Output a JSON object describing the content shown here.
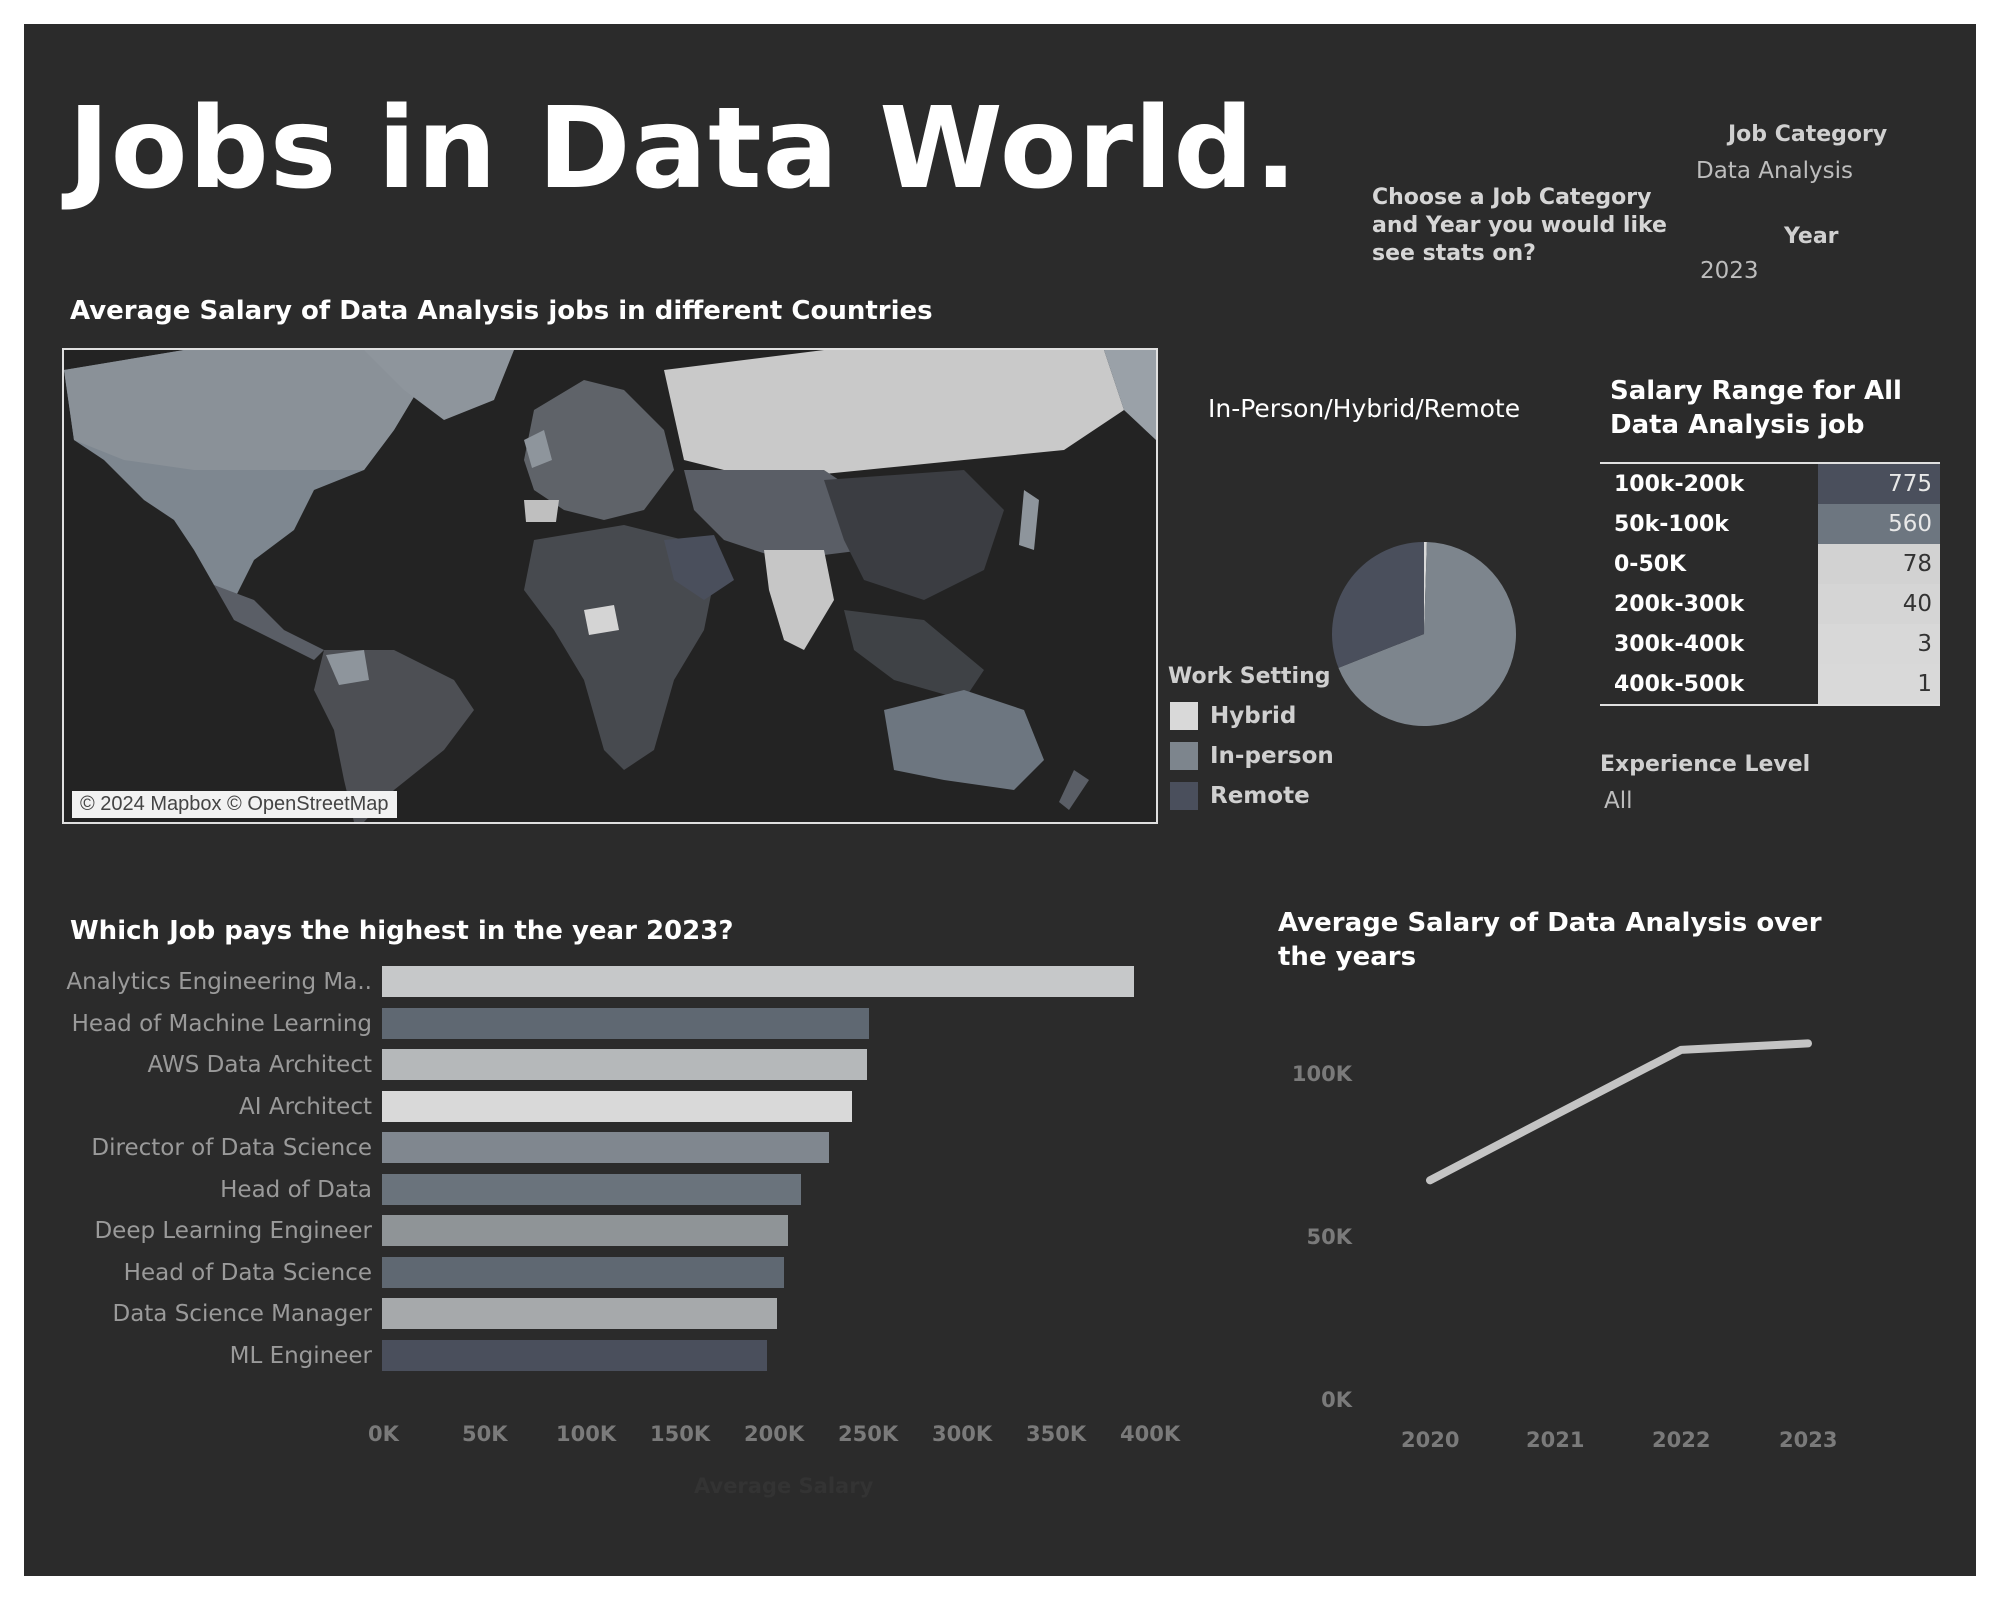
{
  "header": {
    "title": "Jobs in Data World.",
    "prompt": "Choose a Job Category and Year you would like see stats on?"
  },
  "filters": {
    "job_category_label": "Job Category",
    "job_category_value": "Data Analysis",
    "year_label": "Year",
    "year_value": "2023",
    "experience_label": "Experience Level",
    "experience_value": "All"
  },
  "map": {
    "title": "Average Salary of Data Analysis jobs in different Countries",
    "attribution": "© 2024 Mapbox © OpenStreetMap"
  },
  "work_setting": {
    "title": "In-Person/Hybrid/Remote",
    "legend_title": "Work Setting",
    "items": [
      {
        "label": "Hybrid",
        "color": "#d9d9d9"
      },
      {
        "label": "In-person",
        "color": "#7d858d"
      },
      {
        "label": "Remote",
        "color": "#4a4f5c"
      }
    ]
  },
  "salary_range": {
    "title_line1": "Salary Range for All",
    "title_line2": "Data Analysis job",
    "rows": [
      {
        "label": "100k-200k",
        "value": "775",
        "bg": "#4a4f5c",
        "fg": "#e8e8e8"
      },
      {
        "label": "50k-100k",
        "value": "560",
        "bg": "#6d7680",
        "fg": "#e8e8e8"
      },
      {
        "label": "0-50K",
        "value": "78",
        "bg": "#d2d2d2",
        "fg": "#333333"
      },
      {
        "label": "200k-300k",
        "value": "40",
        "bg": "#d5d5d5",
        "fg": "#333333"
      },
      {
        "label": "300k-400k",
        "value": "3",
        "bg": "#d8d8d8",
        "fg": "#333333"
      },
      {
        "label": "400k-500k",
        "value": "1",
        "bg": "#d9d9d9",
        "fg": "#333333"
      }
    ]
  },
  "chart_data": [
    {
      "type": "pie",
      "title": "In-Person/Hybrid/Remote",
      "labels": [
        "Hybrid",
        "In-person",
        "Remote"
      ],
      "values": [
        0.5,
        68.5,
        31
      ],
      "colors": [
        "#d9d9d9",
        "#7d858d",
        "#4a4f5c"
      ]
    },
    {
      "type": "bar",
      "orientation": "horizontal",
      "title": "Which Job pays the highest in the year 2023?",
      "xlabel": "Average Salary",
      "categories": [
        "Analytics Engineering Ma..",
        "Head of Machine Learning",
        "AWS Data Architect",
        "AI Architect",
        "Director of Data Science",
        "Head of Data",
        "Deep Learning Engineer",
        "Head of Data Science",
        "Data Science Manager",
        "ML Engineer"
      ],
      "values": [
        400000,
        259000,
        258000,
        250000,
        238000,
        223000,
        216000,
        214000,
        210000,
        205000
      ],
      "colors": [
        "#c6c8c9",
        "#5f6872",
        "#b5b8ba",
        "#d9d9d9",
        "#80878f",
        "#6a737c",
        "#8f9497",
        "#5f6872",
        "#a6a9ab",
        "#4a4f5c"
      ],
      "xticks": [
        "0K",
        "50K",
        "100K",
        "150K",
        "200K",
        "250K",
        "300K",
        "350K",
        "400K"
      ],
      "xlim": [
        0,
        400000
      ]
    },
    {
      "type": "line",
      "title": "Average Salary of Data Analysis over the years",
      "x": [
        "2020",
        "2021",
        "2022",
        "2023"
      ],
      "values": [
        68000,
        88000,
        108000,
        110000
      ],
      "yticks": [
        "0K",
        "50K",
        "100K"
      ],
      "ylim": [
        0,
        100000
      ],
      "color": "#c4c4c4"
    }
  ]
}
